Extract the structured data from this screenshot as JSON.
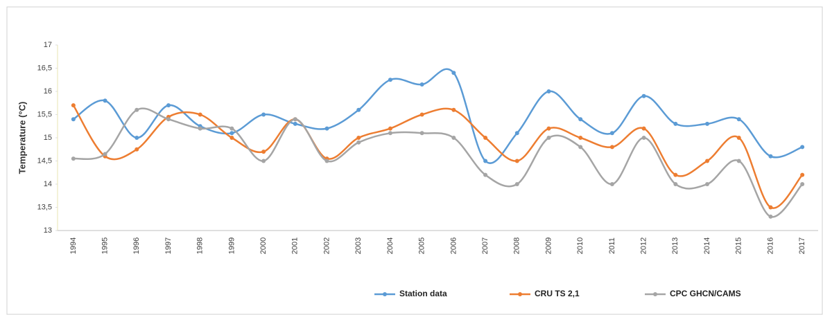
{
  "chart_data": {
    "type": "line",
    "y_label": "Temperature (°C)",
    "categories": [
      "1994",
      "1995",
      "1996",
      "1997",
      "1998",
      "1999",
      "2000",
      "2001",
      "2002",
      "2003",
      "2004",
      "2005",
      "2006",
      "2007",
      "2008",
      "2009",
      "2010",
      "2011",
      "2012",
      "2013",
      "2014",
      "2015",
      "2016",
      "2017"
    ],
    "series": [
      {
        "name": "Station data",
        "color": "#5b9bd5",
        "values": [
          15.4,
          15.8,
          15.0,
          15.7,
          15.25,
          15.1,
          15.5,
          15.3,
          15.2,
          15.6,
          16.25,
          16.15,
          16.4,
          14.5,
          15.1,
          16.0,
          15.4,
          15.1,
          15.9,
          15.3,
          15.3,
          15.4,
          14.6,
          14.8
        ]
      },
      {
        "name": "CRU TS 2,1",
        "color": "#ed7d31",
        "values": [
          15.7,
          14.6,
          14.75,
          15.45,
          15.5,
          15.0,
          14.7,
          15.4,
          14.55,
          15.0,
          15.2,
          15.5,
          15.6,
          15.0,
          14.5,
          15.2,
          15.0,
          14.8,
          15.2,
          14.2,
          14.5,
          15.0,
          13.5,
          14.2
        ]
      },
      {
        "name": "CPC GHCN/CAMS",
        "color": "#a5a5a5",
        "values": [
          14.55,
          14.65,
          15.6,
          15.4,
          15.2,
          15.2,
          14.5,
          15.4,
          14.5,
          14.9,
          15.1,
          15.1,
          15.0,
          14.2,
          14.0,
          15.0,
          14.8,
          14.0,
          15.0,
          14.0,
          14.0,
          14.5,
          13.3,
          14.0
        ]
      }
    ],
    "ylim": [
      13,
      17
    ],
    "yticks": [
      13,
      {
        "value": 13.5,
        "label": "13,5"
      },
      14,
      {
        "value": 14.5,
        "label": "14,5"
      },
      15,
      {
        "value": 15.5,
        "label": "15,5"
      },
      16,
      {
        "value": 16.5,
        "label": "16,5"
      },
      17
    ],
    "grid": false,
    "smooth": true,
    "legend": "bottom"
  }
}
